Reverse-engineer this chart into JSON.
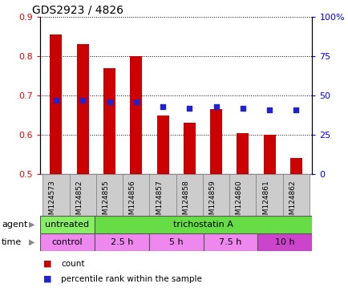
{
  "title": "GDS2923 / 4826",
  "samples": [
    "GSM124573",
    "GSM124852",
    "GSM124855",
    "GSM124856",
    "GSM124857",
    "GSM124858",
    "GSM124859",
    "GSM124860",
    "GSM124861",
    "GSM124862"
  ],
  "count_values": [
    0.855,
    0.83,
    0.77,
    0.8,
    0.65,
    0.63,
    0.665,
    0.605,
    0.6,
    0.54
  ],
  "percentile_values": [
    0.688,
    0.688,
    0.684,
    0.684,
    0.671,
    0.668,
    0.671,
    0.668,
    0.663,
    0.663
  ],
  "ylim_left": [
    0.5,
    0.9
  ],
  "ylim_right": [
    0,
    100
  ],
  "yticks_left": [
    0.5,
    0.6,
    0.7,
    0.8,
    0.9
  ],
  "yticks_right": [
    0,
    25,
    50,
    75,
    100
  ],
  "ytick_labels_right": [
    "0",
    "25",
    "50",
    "75",
    "100%"
  ],
  "bar_color": "#cc0000",
  "dot_color": "#2222cc",
  "bar_width": 0.45,
  "agent_untreated_color": "#88ee66",
  "agent_trichostatin_color": "#66dd44",
  "time_light_color": "#ee88ee",
  "time_dark_color": "#cc44cc",
  "sample_bg_color": "#cccccc",
  "background_color": "#ffffff",
  "legend_count_color": "#cc0000",
  "legend_dot_color": "#2222cc",
  "legend_count_label": "count",
  "legend_dot_label": "percentile rank within the sample",
  "agent_label": "agent",
  "time_label": "time"
}
